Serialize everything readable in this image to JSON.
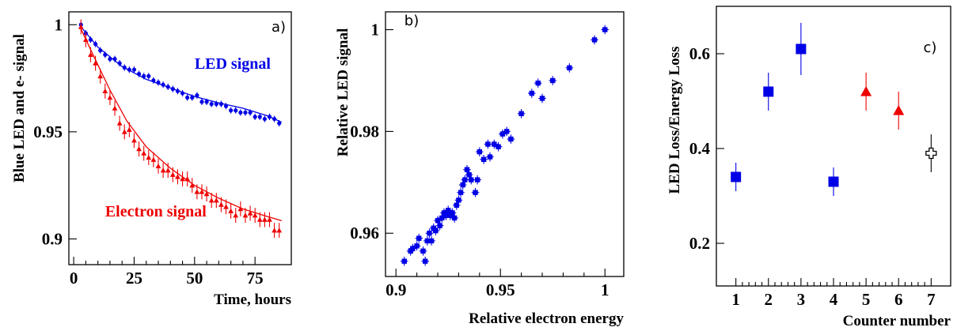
{
  "colors": {
    "blue": "#0000e6",
    "red": "#ee0000",
    "black": "#000000"
  },
  "chart_data": [
    {
      "id": "a",
      "type": "scatter",
      "tag": "a)",
      "xlabel": "Time, hours",
      "ylabel": "Blue LED and e- signal",
      "xlim": [
        -2,
        90
      ],
      "ylim": [
        0.888,
        1.006
      ],
      "xticks": [
        0,
        25,
        50,
        75
      ],
      "xticklabels": [
        "0",
        "25",
        "50",
        "75"
      ],
      "yticks": [
        0.9,
        0.95,
        1.0
      ],
      "yticklabels": [
        "0.9",
        "0.95",
        "1"
      ],
      "annotations": [
        {
          "text": "LED signal",
          "color": "blue",
          "x": 50,
          "y": 0.9795
        },
        {
          "text": "Electron signal",
          "color": "red",
          "x": 13,
          "y": 0.9105
        }
      ],
      "series": [
        {
          "color": "blue",
          "marker": "circle",
          "x": [
            3,
            5,
            7,
            9,
            11,
            13,
            15,
            17,
            19,
            21,
            23,
            25,
            27,
            29,
            31,
            33,
            35,
            37,
            39,
            41,
            43,
            45,
            47,
            49,
            51,
            53,
            55,
            57,
            59,
            61,
            63,
            65,
            67,
            69,
            71,
            73,
            75,
            77,
            79,
            81,
            83,
            85
          ],
          "y": [
            1.0,
            0.996,
            0.993,
            0.991,
            0.988,
            0.986,
            0.984,
            0.984,
            0.982,
            0.98,
            0.979,
            0.979,
            0.977,
            0.976,
            0.976,
            0.974,
            0.973,
            0.972,
            0.971,
            0.97,
            0.969,
            0.968,
            0.966,
            0.966,
            0.967,
            0.964,
            0.964,
            0.963,
            0.963,
            0.963,
            0.962,
            0.96,
            0.96,
            0.959,
            0.959,
            0.959,
            0.957,
            0.957,
            0.956,
            0.957,
            0.956,
            0.954
          ],
          "yerr": 0.0015,
          "fit": {
            "x": [
              3,
              10,
              20,
              30,
              40,
              50,
              60,
              70,
              80,
              86
            ],
            "y": [
              0.999,
              0.9895,
              0.9805,
              0.9745,
              0.9705,
              0.9665,
              0.9635,
              0.961,
              0.9575,
              0.9545
            ]
          }
        },
        {
          "color": "red",
          "marker": "triangle",
          "x": [
            3,
            5,
            7,
            9,
            11,
            13,
            15,
            17,
            19,
            21,
            23,
            25,
            27,
            29,
            31,
            33,
            35,
            37,
            39,
            41,
            43,
            45,
            47,
            49,
            51,
            53,
            55,
            57,
            59,
            61,
            63,
            65,
            67,
            69,
            71,
            73,
            75,
            77,
            79,
            81,
            83,
            85
          ],
          "y": [
            0.999,
            0.993,
            0.986,
            0.982,
            0.976,
            0.969,
            0.966,
            0.961,
            0.954,
            0.95,
            0.951,
            0.946,
            0.942,
            0.94,
            0.938,
            0.937,
            0.934,
            0.932,
            0.932,
            0.93,
            0.929,
            0.928,
            0.928,
            0.925,
            0.922,
            0.922,
            0.921,
            0.918,
            0.918,
            0.916,
            0.915,
            0.913,
            0.911,
            0.914,
            0.911,
            0.912,
            0.911,
            0.909,
            0.909,
            0.909,
            0.904,
            0.904
          ],
          "yerr": 0.0035,
          "fit": {
            "x": [
              3,
              8,
              15,
              22,
              30,
              40,
              50,
              60,
              70,
              80,
              86
            ],
            "y": [
              0.998,
              0.986,
              0.9695,
              0.955,
              0.943,
              0.933,
              0.925,
              0.919,
              0.914,
              0.9105,
              0.9085
            ]
          }
        }
      ]
    },
    {
      "id": "b",
      "type": "scatter",
      "tag": "b)",
      "xlabel": "Relative electron energy",
      "ylabel": "Relative LED signal",
      "xlim": [
        0.895,
        1.009
      ],
      "ylim": [
        0.9515,
        1.0035
      ],
      "xticks": [
        0.9,
        0.95,
        1.0
      ],
      "xticklabels": [
        "0.9",
        "0.95",
        "1"
      ],
      "yticks": [
        0.96,
        0.98,
        1.0
      ],
      "yticklabels": [
        "0.96",
        "0.98",
        "1"
      ],
      "series": [
        {
          "color": "blue",
          "marker": "square",
          "x": [
            0.904,
            0.907,
            0.908,
            0.91,
            0.911,
            0.913,
            0.914,
            0.915,
            0.916,
            0.917,
            0.918,
            0.919,
            0.92,
            0.921,
            0.922,
            0.923,
            0.924,
            0.925,
            0.926,
            0.927,
            0.928,
            0.929,
            0.93,
            0.931,
            0.932,
            0.933,
            0.934,
            0.935,
            0.936,
            0.938,
            0.939,
            0.94,
            0.942,
            0.944,
            0.945,
            0.947,
            0.949,
            0.951,
            0.953,
            0.955,
            0.96,
            0.965,
            0.968,
            0.97,
            0.975,
            0.983,
            0.995,
            1.0
          ],
          "y": [
            0.9545,
            0.9565,
            0.957,
            0.9575,
            0.959,
            0.9565,
            0.9545,
            0.9585,
            0.96,
            0.9585,
            0.961,
            0.9605,
            0.9625,
            0.9615,
            0.963,
            0.964,
            0.9635,
            0.9645,
            0.9635,
            0.964,
            0.963,
            0.9655,
            0.9665,
            0.968,
            0.9695,
            0.9705,
            0.9725,
            0.9715,
            0.9705,
            0.968,
            0.9705,
            0.976,
            0.9745,
            0.9775,
            0.975,
            0.9775,
            0.977,
            0.9795,
            0.98,
            0.9785,
            0.9835,
            0.9875,
            0.9895,
            0.9865,
            0.99,
            0.9925,
            0.998,
            1.0
          ],
          "xerr": 0.0018,
          "yerr": 0.0009
        }
      ]
    },
    {
      "id": "c",
      "type": "scatter",
      "tag": "c)",
      "xlabel": "Counter number",
      "ylabel": "LED Loss/Energy Loss",
      "xlim": [
        0.4,
        7.6
      ],
      "ylim": [
        0.11,
        0.7
      ],
      "xticks": [
        1,
        2,
        3,
        4,
        5,
        6,
        7
      ],
      "xticklabels": [
        "1",
        "2",
        "3",
        "4",
        "5",
        "6",
        "7"
      ],
      "yticks": [
        0.2,
        0.4,
        0.6
      ],
      "yticklabels": [
        "0.2",
        "0.4",
        "0.6"
      ],
      "series": [
        {
          "color": "blue",
          "marker": "square",
          "x": [
            1,
            2,
            3,
            4
          ],
          "y": [
            0.34,
            0.52,
            0.61,
            0.33
          ],
          "yerr": [
            0.03,
            0.04,
            0.055,
            0.03
          ]
        },
        {
          "color": "red",
          "marker": "triangle",
          "x": [
            5,
            6
          ],
          "y": [
            0.52,
            0.48
          ],
          "yerr": [
            0.04,
            0.04
          ]
        },
        {
          "color": "black",
          "marker": "open-cross",
          "x": [
            7
          ],
          "y": [
            0.39
          ],
          "yerr": [
            0.04
          ]
        }
      ]
    }
  ]
}
